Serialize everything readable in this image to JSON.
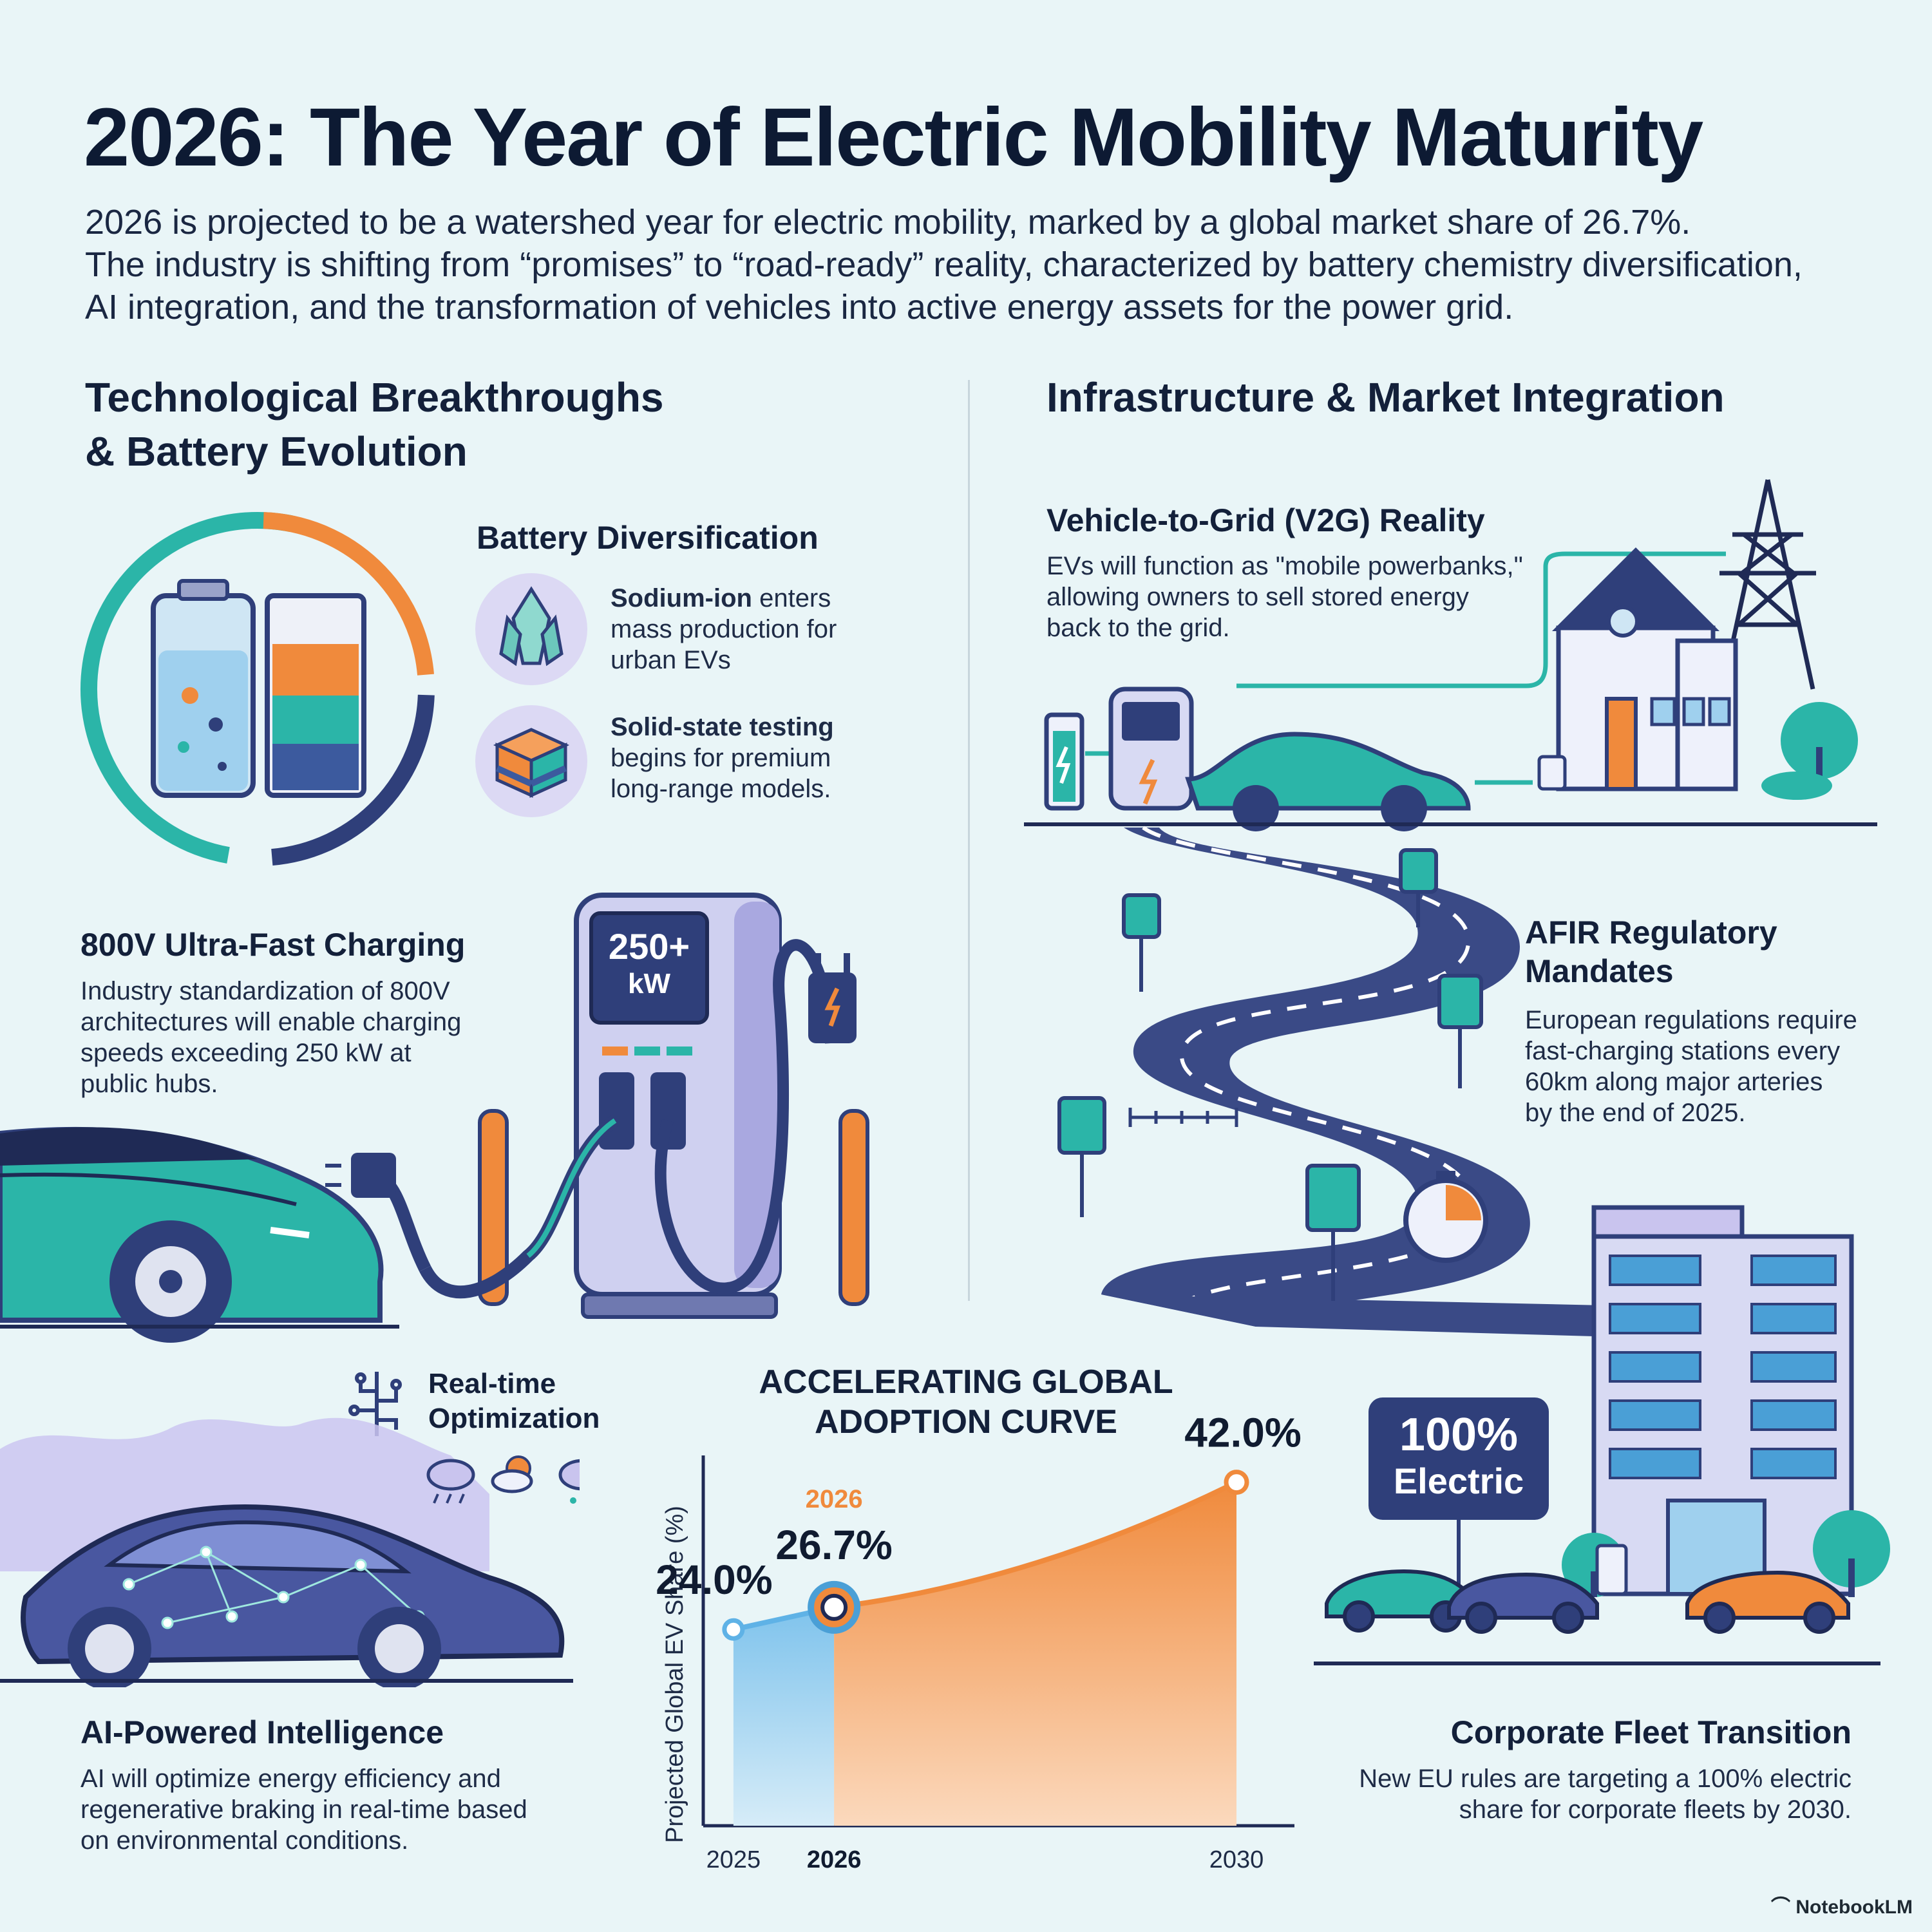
{
  "title": "2026: The Year of Electric Mobility Maturity",
  "intro": [
    "2026 is projected to be a watershed year for electric mobility, marked by a global market share of 26.7%.",
    "The industry is shifting from “promises” to “road-ready” reality, characterized by battery chemistry diversification,",
    "AI integration, and the transformation of vehicles into active energy assets for the power grid."
  ],
  "left_section": {
    "title_line1": "Technological Breakthroughs",
    "title_line2": "& Battery Evolution"
  },
  "right_section": {
    "title": "Infrastructure & Market Integration"
  },
  "battery": {
    "title": "Battery Diversification",
    "sodium": {
      "bold": "Sodium-ion",
      "rest1": " enters",
      "line2": "mass production for",
      "line3": "urban EVs"
    },
    "solid": {
      "bold": "Solid-state testing",
      "line2": "begins for premium",
      "line3": "long-range models."
    }
  },
  "charging": {
    "title": "800V Ultra-Fast Charging",
    "lines": [
      "Industry standardization of 800V",
      "architectures will enable charging",
      "speeds exceeding 250 kW at",
      "public hubs."
    ],
    "screen_value": "250+",
    "screen_unit": "kW"
  },
  "v2g": {
    "title": "Vehicle-to-Grid (V2G) Reality",
    "lines": [
      "EVs will function as \"mobile powerbanks,\"",
      "allowing owners to sell stored energy",
      "back to the grid."
    ]
  },
  "afir": {
    "title_line1": "AFIR Regulatory",
    "title_line2": "Mandates",
    "lines": [
      "European regulations require",
      "fast-charging stations every",
      "60km along major arteries",
      "by the end of 2025."
    ]
  },
  "ai": {
    "optimization_line1": "Real-time",
    "optimization_line2": "Optimization",
    "title": "AI-Powered Intelligence",
    "lines": [
      "AI will optimize energy efficiency and",
      "regenerative braking in real-time based",
      "on environmental conditions."
    ]
  },
  "fleet": {
    "sign_line1": "100%",
    "sign_line2": "Electric",
    "title": "Corporate Fleet Transition",
    "lines": [
      "New EU rules are targeting a 100% electric",
      "share for corporate fleets by 2030."
    ]
  },
  "chart_data": {
    "type": "area",
    "title_line1": "ACCELERATING GLOBAL",
    "title_line2": "ADOPTION CURVE",
    "ylabel": "Projected Global EV Share (%)",
    "x": [
      "2025",
      "2026",
      "2030"
    ],
    "values": [
      24.0,
      26.7,
      42.0
    ],
    "value_labels": [
      "24.0%",
      "26.7%",
      "42.0%"
    ],
    "highlight_label": "2026",
    "ylim": [
      0,
      50
    ]
  },
  "watermark": "NotebookLM",
  "colors": {
    "teal": "#2bb5a8",
    "orange": "#f08a3c",
    "navy": "#2f3f7a",
    "lavender": "#c9c4ee",
    "bg": "#e9f5f7"
  }
}
